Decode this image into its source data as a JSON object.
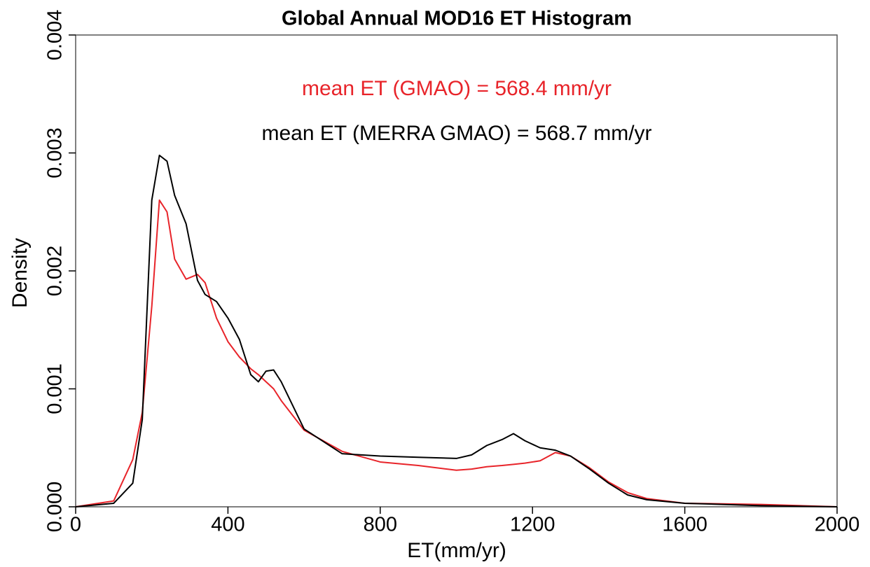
{
  "chart_data": {
    "type": "line",
    "title": "Global Annual MOD16 ET Histogram",
    "x_label": "ET(mm/yr)",
    "y_label": "Density",
    "annotations": [
      {
        "text": "mean ET (GMAO) =  568.4  mm/yr",
        "color": "#e8242a"
      },
      {
        "text": "mean ET (MERRA GMAO) =  568.7  mm/yr",
        "color": "#000000"
      }
    ],
    "x": [
      0,
      100,
      150,
      175,
      200,
      220,
      240,
      260,
      290,
      320,
      340,
      370,
      400,
      430,
      460,
      480,
      500,
      520,
      540,
      600,
      700,
      800,
      900,
      1000,
      1040,
      1080,
      1120,
      1150,
      1180,
      1220,
      1260,
      1300,
      1350,
      1400,
      1450,
      1500,
      1600,
      1800,
      2000
    ],
    "series": [
      {
        "color": "#e8242a",
        "values": [
          0,
          5e-05,
          0.0004,
          0.0008,
          0.0017,
          0.0026,
          0.0025,
          0.0021,
          0.00193,
          0.00197,
          0.0019,
          0.0016,
          0.0014,
          0.00127,
          0.00117,
          0.00112,
          0.00106,
          0.001,
          0.0009,
          0.00065,
          0.00047,
          0.00038,
          0.00035,
          0.00031,
          0.00032,
          0.00034,
          0.00035,
          0.00036,
          0.00037,
          0.00039,
          0.00046,
          0.00043,
          0.00033,
          0.00021,
          0.00012,
          7e-05,
          3e-05,
          2e-05,
          0
        ]
      },
      {
        "color": "#000000",
        "values": [
          0,
          3e-05,
          0.0002,
          0.00074,
          0.0026,
          0.00298,
          0.00293,
          0.00264,
          0.0024,
          0.00192,
          0.0018,
          0.00174,
          0.0016,
          0.00142,
          0.00112,
          0.00106,
          0.00115,
          0.00116,
          0.00106,
          0.00066,
          0.00045,
          0.00043,
          0.00042,
          0.00041,
          0.00044,
          0.00052,
          0.00057,
          0.00062,
          0.00056,
          0.0005,
          0.00048,
          0.00043,
          0.00032,
          0.0002,
          0.0001,
          6e-05,
          3e-05,
          1e-05,
          0
        ]
      }
    ],
    "xlim": [
      0,
      2000
    ],
    "xticks": [
      0,
      400,
      800,
      1200,
      1600,
      2000
    ],
    "ylim": [
      0,
      0.004
    ],
    "yticks": [
      {
        "value": 0,
        "label": "0.000"
      },
      {
        "value": 0.001,
        "label": "0.001"
      },
      {
        "value": 0.002,
        "label": "0.002"
      },
      {
        "value": 0.003,
        "label": "0.003"
      },
      {
        "value": 0.004,
        "label": "0.004"
      }
    ]
  }
}
